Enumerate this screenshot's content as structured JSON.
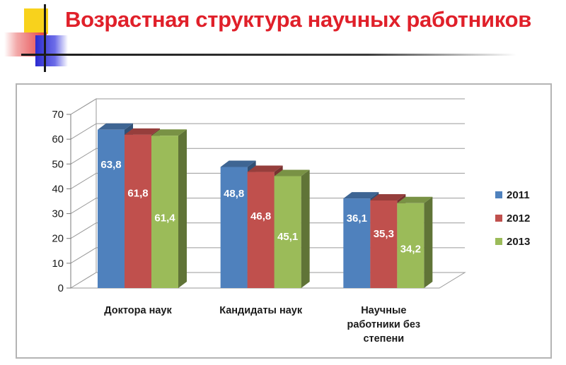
{
  "header": {
    "title": "Возрастная структура научных работников"
  },
  "colors": {
    "title": "#e0202a",
    "series": [
      "#4f81bd",
      "#c0504d",
      "#9bbb59"
    ]
  },
  "chart_data": {
    "type": "bar",
    "style": "3d-clustered-column",
    "title": "",
    "xlabel": "",
    "ylabel": "",
    "ylim": [
      0,
      70
    ],
    "yticks": [
      0,
      10,
      20,
      30,
      40,
      50,
      60,
      70
    ],
    "grid": true,
    "legend_position": "right",
    "categories": [
      [
        "Доктора наук"
      ],
      [
        "Кандидаты наук"
      ],
      [
        "Научные",
        "работники без",
        "степени"
      ]
    ],
    "series": [
      {
        "name": "2011",
        "values": [
          63.8,
          48.8,
          36.1
        ],
        "labels": [
          "63,8",
          "48,8",
          "36,1"
        ]
      },
      {
        "name": "2012",
        "values": [
          61.8,
          46.8,
          35.3
        ],
        "labels": [
          "61,8",
          "46,8",
          "35,3"
        ]
      },
      {
        "name": "2013",
        "values": [
          61.4,
          45.1,
          34.2
        ],
        "labels": [
          "61,4",
          "45,1",
          "34,2"
        ]
      }
    ]
  }
}
